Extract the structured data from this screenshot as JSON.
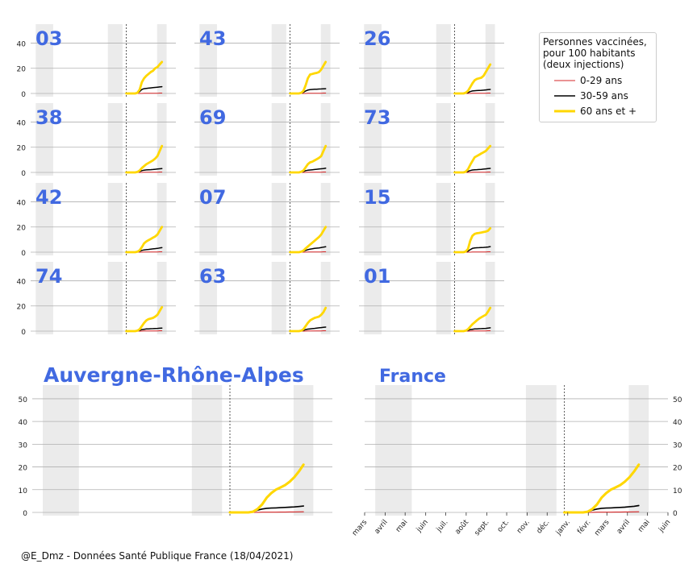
{
  "chart_data": {
    "type": "line",
    "x_ticks": [
      "mars",
      "avril",
      "mai",
      "juin",
      "juil.",
      "août",
      "sept.",
      "oct.",
      "nov.",
      "déc.",
      "janv.",
      "févr.",
      "mars",
      "avril",
      "mai",
      "juin"
    ],
    "x_range_months": [
      "2020-03",
      "2021-06"
    ],
    "vaccination_start": "2020-12-27",
    "shaded_periods": [
      [
        "2020-03-17",
        "2020-05-11"
      ],
      [
        "2020-10-30",
        "2020-12-15"
      ],
      [
        "2021-04-03",
        "2021-05-03"
      ]
    ],
    "legend": {
      "title": "Personnes vaccinées,\npour 100 habitants\n(deux injections)",
      "placement": "top-right",
      "entries": [
        {
          "name": "0-29 ans",
          "color": "#d62728"
        },
        {
          "name": "30-59 ans",
          "color": "#000000"
        },
        {
          "name": "60 ans et +",
          "color": "#ffd700"
        }
      ]
    },
    "small_multiples": {
      "ylim": [
        0,
        55
      ],
      "yticks": [
        0,
        20,
        40
      ],
      "dates": [
        "2020-12-27",
        "2021-01-03",
        "2021-01-10",
        "2021-01-17",
        "2021-01-24",
        "2021-01-31",
        "2021-02-07",
        "2021-02-14",
        "2021-02-21",
        "2021-02-28",
        "2021-03-07",
        "2021-03-14",
        "2021-03-21",
        "2021-03-28",
        "2021-04-04",
        "2021-04-11",
        "2021-04-18"
      ],
      "panels": [
        {
          "label": "03",
          "series": [
            [
              0,
              0,
              0,
              0,
              0,
              0,
              0,
              0,
              0.1,
              0.1,
              0.1,
              0.1,
              0.2,
              0.2,
              0.2,
              0.3,
              0.3
            ],
            [
              0,
              0,
              0,
              0,
              0,
              0.3,
              1.5,
              3.2,
              3.8,
              4,
              4.2,
              4.4,
              4.6,
              4.8,
              5,
              5.2,
              5.4
            ],
            [
              0,
              0,
              0,
              0,
              0,
              0.5,
              3,
              9,
              12,
              14,
              15.5,
              17,
              18,
              20,
              21,
              23,
              25
            ]
          ]
        },
        {
          "label": "43",
          "series": [
            [
              0,
              0,
              0,
              0,
              0,
              0,
              0,
              0,
              0.1,
              0.1,
              0.1,
              0.1,
              0.2,
              0.2,
              0.2,
              0.3,
              0.3
            ],
            [
              0,
              0,
              0,
              0,
              0,
              0.2,
              0.9,
              2,
              2.7,
              3,
              3.2,
              3.3,
              3.4,
              3.5,
              3.6,
              3.7,
              3.8
            ],
            [
              0,
              0,
              0,
              0,
              0,
              0.5,
              2,
              6.5,
              12,
              15,
              15.5,
              16,
              16.3,
              17,
              19,
              22,
              25
            ]
          ]
        },
        {
          "label": "26",
          "series": [
            [
              0,
              0,
              0,
              0,
              0,
              0,
              0,
              0,
              0.1,
              0.1,
              0.1,
              0.1,
              0.2,
              0.2,
              0.2,
              0.3,
              0.3
            ],
            [
              0,
              0,
              0,
              0,
              0,
              0.2,
              0.7,
              1.5,
              2,
              2.2,
              2.3,
              2.4,
              2.5,
              2.6,
              2.8,
              3,
              3.2
            ],
            [
              0,
              0,
              0,
              0,
              0,
              0.6,
              2,
              5,
              8,
              10.5,
              11.5,
              12,
              12.5,
              14,
              17,
              20,
              23
            ]
          ]
        },
        {
          "label": "38",
          "series": [
            [
              0,
              0,
              0,
              0,
              0,
              0,
              0,
              0,
              0.1,
              0.1,
              0.1,
              0.1,
              0.2,
              0.2,
              0.2,
              0.3,
              0.3
            ],
            [
              0,
              0,
              0,
              0,
              0,
              0.2,
              0.7,
              1.4,
              1.8,
              2,
              2.1,
              2.2,
              2.3,
              2.5,
              2.7,
              2.9,
              3.1
            ],
            [
              0,
              0,
              0,
              0,
              0,
              0.4,
              1.5,
              3.5,
              5,
              6.5,
              7.5,
              8.5,
              9.5,
              11,
              13,
              17,
              21
            ]
          ]
        },
        {
          "label": "69",
          "series": [
            [
              0,
              0,
              0,
              0,
              0,
              0,
              0,
              0,
              0.1,
              0.1,
              0.1,
              0.1,
              0.2,
              0.2,
              0.2,
              0.3,
              0.3
            ],
            [
              0,
              0,
              0,
              0,
              0,
              0.2,
              0.7,
              1.4,
              1.7,
              1.9,
              2.1,
              2.3,
              2.5,
              2.7,
              2.9,
              3.1,
              3.3
            ],
            [
              0,
              0,
              0,
              0,
              0,
              0.5,
              1.5,
              4,
              6.5,
              8,
              8.5,
              9.5,
              10.5,
              11.5,
              13,
              17,
              21
            ]
          ]
        },
        {
          "label": "73",
          "series": [
            [
              0,
              0,
              0,
              0,
              0,
              0,
              0,
              0,
              0.1,
              0.1,
              0.1,
              0.1,
              0.2,
              0.2,
              0.2,
              0.3,
              0.3
            ],
            [
              0,
              0,
              0,
              0,
              0,
              0.2,
              0.8,
              1.5,
              1.9,
              2.1,
              2.2,
              2.3,
              2.4,
              2.6,
              2.8,
              3,
              3.2
            ],
            [
              0,
              0,
              0,
              0,
              0,
              0.6,
              2.5,
              6,
              9,
              12,
              13,
              14,
              15,
              16,
              17,
              19,
              21
            ]
          ]
        },
        {
          "label": "42",
          "series": [
            [
              0,
              0,
              0,
              0,
              0,
              0,
              0,
              0,
              0.1,
              0.1,
              0.1,
              0.1,
              0.2,
              0.2,
              0.2,
              0.3,
              0.3
            ],
            [
              0,
              0,
              0,
              0,
              0,
              0.2,
              0.7,
              1.4,
              1.8,
              2,
              2.2,
              2.4,
              2.6,
              2.8,
              3,
              3.3,
              3.6
            ],
            [
              0,
              0,
              0,
              0,
              0,
              0.4,
              1.5,
              4,
              7,
              8.5,
              9.5,
              10.5,
              11.5,
              12.5,
              14,
              17,
              20
            ]
          ]
        },
        {
          "label": "07",
          "series": [
            [
              0,
              0,
              0,
              0,
              0,
              0,
              0,
              0,
              0.1,
              0.1,
              0.1,
              0.1,
              0.2,
              0.2,
              0.2,
              0.3,
              0.3
            ],
            [
              0,
              0,
              0,
              0,
              0,
              0.2,
              0.7,
              1.4,
              2,
              2.4,
              2.7,
              3,
              3.2,
              3.4,
              3.7,
              4,
              4.3
            ],
            [
              0,
              0,
              0,
              0,
              0,
              0.4,
              1.2,
              3,
              4.5,
              6,
              7.5,
              9,
              10.5,
              12,
              14,
              17,
              20
            ]
          ]
        },
        {
          "label": "15",
          "series": [
            [
              0,
              0,
              0,
              0,
              0,
              0,
              0,
              0,
              0.1,
              0.1,
              0.1,
              0.1,
              0.2,
              0.2,
              0.2,
              0.3,
              0.3
            ],
            [
              0,
              0,
              0,
              0,
              0,
              0.2,
              0.8,
              2,
              3,
              3.3,
              3.5,
              3.6,
              3.7,
              3.8,
              3.9,
              4.1,
              4.4
            ],
            [
              0,
              0,
              0,
              0,
              0,
              0.5,
              2.5,
              9,
              13,
              14.5,
              15,
              15.3,
              15.6,
              16,
              16.3,
              17,
              19
            ]
          ]
        },
        {
          "label": "74",
          "series": [
            [
              0,
              0,
              0,
              0,
              0,
              0,
              0,
              0,
              0.1,
              0.1,
              0.1,
              0.1,
              0.2,
              0.2,
              0.2,
              0.3,
              0.3
            ],
            [
              0,
              0,
              0,
              0,
              0,
              0.2,
              0.6,
              1.2,
              1.5,
              1.7,
              1.8,
              1.9,
              2,
              2.1,
              2.2,
              2.3,
              2.4
            ],
            [
              0,
              0,
              0,
              0,
              0,
              0.4,
              1.5,
              4,
              6.5,
              8.5,
              9.5,
              10,
              10.5,
              11.5,
              13,
              16,
              19
            ]
          ]
        },
        {
          "label": "63",
          "series": [
            [
              0,
              0,
              0,
              0,
              0,
              0,
              0,
              0,
              0.1,
              0.1,
              0.1,
              0.1,
              0.2,
              0.2,
              0.2,
              0.3,
              0.3
            ],
            [
              0,
              0,
              0,
              0,
              0,
              0.2,
              0.6,
              1.2,
              1.6,
              1.8,
              2,
              2.2,
              2.4,
              2.6,
              2.8,
              3,
              3.2
            ],
            [
              0,
              0,
              0,
              0,
              0,
              0.4,
              1.5,
              4,
              6.5,
              8.5,
              9.5,
              10.5,
              11,
              11.5,
              13,
              15,
              18.5
            ]
          ]
        },
        {
          "label": "01",
          "series": [
            [
              0,
              0,
              0,
              0,
              0,
              0,
              0,
              0,
              0.1,
              0.1,
              0.1,
              0.1,
              0.2,
              0.2,
              0.2,
              0.3,
              0.3
            ],
            [
              0,
              0,
              0,
              0,
              0,
              0.2,
              0.6,
              1.2,
              1.5,
              1.7,
              1.8,
              1.9,
              2,
              2.1,
              2.2,
              2.4,
              2.6
            ],
            [
              0,
              0,
              0,
              0,
              0,
              0.4,
              1.5,
              3.5,
              5.5,
              7,
              8.5,
              10,
              11,
              12,
              13,
              15.5,
              18.5
            ]
          ]
        }
      ]
    },
    "large_panels": [
      {
        "title": "Auvergne-Rhône-Alpes",
        "ylim": [
          0,
          56
        ],
        "yticks": [
          0,
          10,
          20,
          30,
          40,
          50
        ],
        "yaxis": "left",
        "dates": [
          "2020-12-27",
          "2021-01-03",
          "2021-01-10",
          "2021-01-17",
          "2021-01-24",
          "2021-01-31",
          "2021-02-07",
          "2021-02-14",
          "2021-02-21",
          "2021-02-28",
          "2021-03-07",
          "2021-03-14",
          "2021-03-21",
          "2021-03-28",
          "2021-04-04",
          "2021-04-11",
          "2021-04-18"
        ],
        "series": [
          {
            "name": "0-29 ans",
            "values": [
              0,
              0,
              0,
              0,
              0,
              0,
              0.05,
              0.1,
              0.1,
              0.1,
              0.1,
              0.15,
              0.15,
              0.2,
              0.2,
              0.25,
              0.3
            ]
          },
          {
            "name": "30-59 ans",
            "values": [
              0,
              0,
              0,
              0,
              0,
              0.3,
              1,
              1.5,
              1.8,
              1.9,
              2,
              2.1,
              2.2,
              2.3,
              2.4,
              2.6,
              2.8
            ]
          },
          {
            "name": "60 ans et +",
            "values": [
              0,
              0,
              0,
              0,
              0,
              0.3,
              1.5,
              3.5,
              6.5,
              8.5,
              10,
              11,
              12,
              13.5,
              15.5,
              18,
              21
            ]
          }
        ]
      },
      {
        "title": "France",
        "ylim": [
          0,
          56
        ],
        "yticks": [
          0,
          10,
          20,
          30,
          40,
          50
        ],
        "yaxis": "right",
        "dates": [
          "2020-12-27",
          "2021-01-03",
          "2021-01-10",
          "2021-01-17",
          "2021-01-24",
          "2021-01-31",
          "2021-02-07",
          "2021-02-14",
          "2021-02-21",
          "2021-02-28",
          "2021-03-07",
          "2021-03-14",
          "2021-03-21",
          "2021-03-28",
          "2021-04-04",
          "2021-04-11",
          "2021-04-18"
        ],
        "series": [
          {
            "name": "0-29 ans",
            "values": [
              0,
              0,
              0,
              0,
              0,
              0,
              0.05,
              0.1,
              0.1,
              0.1,
              0.1,
              0.15,
              0.15,
              0.2,
              0.2,
              0.25,
              0.3
            ]
          },
          {
            "name": "30-59 ans",
            "values": [
              0,
              0,
              0,
              0,
              0,
              0.3,
              1,
              1.5,
              1.8,
              1.9,
              2,
              2.1,
              2.2,
              2.3,
              2.5,
              2.7,
              3
            ]
          },
          {
            "name": "60 ans et +",
            "values": [
              0,
              0,
              0,
              0,
              0,
              0.3,
              1.5,
              3.5,
              6.5,
              8.5,
              10,
              11,
              12,
              13.5,
              15.5,
              18,
              21
            ]
          }
        ]
      }
    ]
  },
  "footer": {
    "source": "@E_Dmz - Données Santé Publique France (18/04/2021)"
  }
}
